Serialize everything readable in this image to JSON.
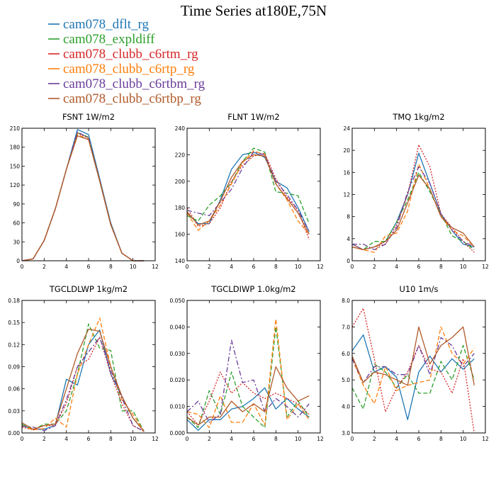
{
  "page_title": "Time Series at180E,75N",
  "colors": {
    "cam078_dflt_rg": "#1f77b4",
    "cam078_expldiff": "#2ca02c",
    "cam078_clubb_c6rtm_rg": "#d62728",
    "cam078_clubb_c6rtp_rg": "#ff7f0e",
    "cam078_clubb_c6rtbm_rg": "#6a3d9a",
    "cam078_clubb_c6rtbp_rg": "#b05a2a"
  },
  "legend": [
    {
      "label": "cam078_dflt_rg",
      "color": "#1f77b4",
      "dash": "solid"
    },
    {
      "label": "cam078_expldiff",
      "color": "#2ca02c",
      "dash": "solid"
    },
    {
      "label": "cam078_clubb_c6rtm_rg",
      "color": "#d62728",
      "dash": "solid"
    },
    {
      "label": "cam078_clubb_c6rtp_rg",
      "color": "#ff7f0e",
      "dash": "solid"
    },
    {
      "label": "cam078_clubb_c6rtbm_rg",
      "color": "#6a3d9a",
      "dash": "solid"
    },
    {
      "label": "cam078_clubb_c6rtbp_rg",
      "color": "#b05a2a",
      "dash": "solid"
    }
  ],
  "chart_data": [
    {
      "type": "line",
      "title": "FSNT   1W/m2",
      "x": [
        0,
        1,
        2,
        3,
        4,
        5,
        6,
        7,
        8,
        9,
        10,
        11
      ],
      "xlim": [
        0,
        12
      ],
      "xticks": [
        0,
        2,
        4,
        6,
        8,
        10,
        12
      ],
      "ylim": [
        0,
        210
      ],
      "yticks": [
        0,
        30,
        60,
        90,
        120,
        150,
        180,
        210
      ],
      "ytick_labels": [
        "0",
        "30",
        "60",
        "90",
        "120",
        "150",
        "180",
        "210"
      ],
      "series": [
        {
          "name": "cam078_dflt_rg",
          "color": "#1f77b4",
          "dash": "solid",
          "values": [
            0,
            3,
            32,
            82,
            145,
            208,
            200,
            130,
            60,
            12,
            0,
            0
          ]
        },
        {
          "name": "cam078_expldiff",
          "color": "#2ca02c",
          "dash": "dash",
          "values": [
            0,
            3,
            32,
            82,
            145,
            203,
            196,
            128,
            58,
            12,
            0,
            0
          ]
        },
        {
          "name": "cam078_clubb_c6rtm_rg",
          "color": "#d62728",
          "dash": "dot",
          "values": [
            0,
            3,
            32,
            82,
            145,
            202,
            194,
            127,
            58,
            12,
            0,
            0
          ]
        },
        {
          "name": "cam078_clubb_c6rtp_rg",
          "color": "#ff7f0e",
          "dash": "dash",
          "values": [
            0,
            3,
            32,
            82,
            145,
            200,
            192,
            127,
            57,
            12,
            0,
            0
          ]
        },
        {
          "name": "cam078_clubb_c6rtbm_rg",
          "color": "#6a3d9a",
          "dash": "dashdot",
          "values": [
            0,
            3,
            32,
            82,
            145,
            204,
            195,
            128,
            58,
            12,
            0,
            0
          ]
        },
        {
          "name": "cam078_clubb_c6rtbp_rg",
          "color": "#b05a2a",
          "dash": "solid",
          "values": [
            0,
            3,
            32,
            82,
            145,
            198,
            192,
            126,
            57,
            12,
            0,
            0
          ]
        }
      ]
    },
    {
      "type": "line",
      "title": "FLNT   1W/m2",
      "x": [
        0,
        1,
        2,
        3,
        4,
        5,
        6,
        7,
        8,
        9,
        10,
        11
      ],
      "xlim": [
        0,
        12
      ],
      "xticks": [
        0,
        2,
        4,
        6,
        8,
        10,
        12
      ],
      "ylim": [
        140,
        240
      ],
      "yticks": [
        140,
        160,
        180,
        200,
        220,
        240
      ],
      "ytick_labels": [
        "140",
        "160",
        "180",
        "200",
        "220",
        "240"
      ],
      "series": [
        {
          "name": "cam078_dflt_rg",
          "color": "#1f77b4",
          "dash": "solid",
          "values": [
            176,
            168,
            168,
            186,
            209,
            220,
            222,
            218,
            200,
            195,
            180,
            162
          ]
        },
        {
          "name": "cam078_expldiff",
          "color": "#2ca02c",
          "dash": "dash",
          "values": [
            174,
            170,
            182,
            189,
            199,
            215,
            225,
            222,
            192,
            191,
            189,
            168
          ]
        },
        {
          "name": "cam078_clubb_c6rtm_rg",
          "color": "#d62728",
          "dash": "dot",
          "values": [
            180,
            166,
            168,
            180,
            200,
            212,
            219,
            221,
            202,
            188,
            178,
            156
          ]
        },
        {
          "name": "cam078_clubb_c6rtp_rg",
          "color": "#ff7f0e",
          "dash": "dash",
          "values": [
            176,
            163,
            170,
            182,
            198,
            214,
            223,
            220,
            198,
            186,
            170,
            160
          ]
        },
        {
          "name": "cam078_clubb_c6rtbm_rg",
          "color": "#6a3d9a",
          "dash": "dashdot",
          "values": [
            178,
            176,
            174,
            184,
            194,
            210,
            222,
            220,
            200,
            190,
            178,
            162
          ]
        },
        {
          "name": "cam078_clubb_c6rtbp_rg",
          "color": "#b05a2a",
          "dash": "solid",
          "values": [
            177,
            167,
            170,
            185,
            203,
            215,
            220,
            219,
            198,
            187,
            176,
            160
          ]
        }
      ]
    },
    {
      "type": "line",
      "title": "TMQ   1kg/m2",
      "x": [
        0,
        1,
        2,
        3,
        4,
        5,
        6,
        7,
        8,
        9,
        10,
        11
      ],
      "xlim": [
        0,
        12
      ],
      "xticks": [
        0,
        2,
        4,
        6,
        8,
        10,
        12
      ],
      "ylim": [
        0,
        24
      ],
      "yticks": [
        0,
        4,
        8,
        12,
        16,
        20,
        24
      ],
      "ytick_labels": [
        "0",
        "4",
        "8",
        "12",
        "16",
        "20",
        "24"
      ],
      "series": [
        {
          "name": "cam078_dflt_rg",
          "color": "#1f77b4",
          "dash": "solid",
          "values": [
            3.0,
            2.0,
            2.5,
            3.5,
            7.0,
            12.0,
            19.5,
            14.0,
            8.5,
            5.5,
            3.0,
            2.5
          ]
        },
        {
          "name": "cam078_expldiff",
          "color": "#2ca02c",
          "dash": "dash",
          "values": [
            2.5,
            2.0,
            3.5,
            3.5,
            7.0,
            11.0,
            16.0,
            12.5,
            8.5,
            4.5,
            3.5,
            2.0
          ]
        },
        {
          "name": "cam078_clubb_c6rtm_rg",
          "color": "#d62728",
          "dash": "dot",
          "values": [
            3.0,
            2.0,
            2.5,
            3.0,
            6.5,
            12.0,
            21.0,
            17.0,
            8.5,
            6.0,
            3.5,
            1.5
          ]
        },
        {
          "name": "cam078_clubb_c6rtp_rg",
          "color": "#ff7f0e",
          "dash": "dash",
          "values": [
            2.5,
            2.0,
            1.5,
            4.5,
            5.0,
            9.0,
            17.5,
            13.0,
            8.0,
            5.5,
            4.5,
            2.5
          ]
        },
        {
          "name": "cam078_clubb_c6rtbm_rg",
          "color": "#6a3d9a",
          "dash": "dashdot",
          "values": [
            3.0,
            3.0,
            2.0,
            3.0,
            6.0,
            12.5,
            17.0,
            14.0,
            8.5,
            5.5,
            3.5,
            2.5
          ]
        },
        {
          "name": "cam078_clubb_c6rtbp_rg",
          "color": "#b05a2a",
          "dash": "solid",
          "values": [
            2.5,
            2.0,
            2.5,
            3.5,
            5.5,
            10.5,
            15.5,
            13.0,
            8.0,
            6.0,
            5.0,
            2.5
          ]
        }
      ]
    },
    {
      "type": "line",
      "title": "TGCLDLWP   1kg/m2",
      "x": [
        0,
        1,
        2,
        3,
        4,
        5,
        6,
        7,
        8,
        9,
        10,
        11
      ],
      "xlim": [
        0,
        12
      ],
      "xticks": [
        0,
        2,
        4,
        6,
        8,
        10,
        12
      ],
      "ylim": [
        0,
        0.18
      ],
      "yticks": [
        0,
        0.03,
        0.06,
        0.09,
        0.12,
        0.15,
        0.18
      ],
      "ytick_labels": [
        "0.00",
        "0.03",
        "0.06",
        "0.09",
        "0.12",
        "0.15",
        "0.18"
      ],
      "series": [
        {
          "name": "cam078_dflt_rg",
          "color": "#1f77b4",
          "dash": "solid",
          "values": [
            0.01,
            0.005,
            0.005,
            0.01,
            0.073,
            0.065,
            0.12,
            0.14,
            0.08,
            0.05,
            0.02,
            0.002
          ]
        },
        {
          "name": "cam078_expldiff",
          "color": "#2ca02c",
          "dash": "dash",
          "values": [
            0.012,
            0.004,
            0.012,
            0.012,
            0.03,
            0.08,
            0.148,
            0.115,
            0.112,
            0.03,
            0.03,
            0.002
          ]
        },
        {
          "name": "cam078_clubb_c6rtm_rg",
          "color": "#d62728",
          "dash": "dot",
          "values": [
            0.008,
            0.004,
            0.01,
            0.01,
            0.04,
            0.09,
            0.1,
            0.13,
            0.08,
            0.04,
            0.01,
            0.002
          ]
        },
        {
          "name": "cam078_clubb_c6rtp_rg",
          "color": "#ff7f0e",
          "dash": "dash",
          "values": [
            0.01,
            0.004,
            0.006,
            0.02,
            0.008,
            0.08,
            0.12,
            0.156,
            0.09,
            0.045,
            0.025,
            0.002
          ]
        },
        {
          "name": "cam078_clubb_c6rtbm_rg",
          "color": "#6a3d9a",
          "dash": "dashdot",
          "values": [
            0.009,
            0.008,
            0.003,
            0.01,
            0.045,
            0.09,
            0.11,
            0.13,
            0.085,
            0.048,
            0.01,
            0.002
          ]
        },
        {
          "name": "cam078_clubb_c6rtbp_rg",
          "color": "#b05a2a",
          "dash": "solid",
          "values": [
            0.014,
            0.005,
            0.01,
            0.012,
            0.06,
            0.108,
            0.141,
            0.138,
            0.09,
            0.05,
            0.02,
            0.002
          ]
        }
      ]
    },
    {
      "type": "line",
      "title": "TGCLDIWP   1.0kg/m2",
      "x": [
        0,
        1,
        2,
        3,
        4,
        5,
        6,
        7,
        8,
        9,
        10,
        11
      ],
      "xlim": [
        0,
        12
      ],
      "xticks": [
        0,
        2,
        4,
        6,
        8,
        10,
        12
      ],
      "ylim": [
        0,
        0.05
      ],
      "yticks": [
        0,
        0.01,
        0.02,
        0.03,
        0.04,
        0.05
      ],
      "ytick_labels": [
        "0.000",
        "0.010",
        "0.020",
        "0.030",
        "0.040",
        "0.050"
      ],
      "series": [
        {
          "name": "cam078_dflt_rg",
          "color": "#1f77b4",
          "dash": "solid",
          "values": [
            0.005,
            0.001,
            0.005,
            0.005,
            0.009,
            0.01,
            0.013,
            0.017,
            0.009,
            0.013,
            0.009,
            0.006
          ]
        },
        {
          "name": "cam078_expldiff",
          "color": "#2ca02c",
          "dash": "dash",
          "values": [
            0.006,
            0.002,
            0.016,
            0.007,
            0.023,
            0.01,
            0.006,
            0.002,
            0.04,
            0.006,
            0.012,
            0.006
          ]
        },
        {
          "name": "cam078_clubb_c6rtm_rg",
          "color": "#d62728",
          "dash": "dot",
          "values": [
            0.008,
            0.003,
            0.012,
            0.023,
            0.015,
            0.019,
            0.015,
            0.013,
            0.015,
            0.013,
            0.011,
            0.007
          ]
        },
        {
          "name": "cam078_clubb_c6rtp_rg",
          "color": "#ff7f0e",
          "dash": "dash",
          "values": [
            0.008,
            0.007,
            0.002,
            0.014,
            0.004,
            0.004,
            0.011,
            0.003,
            0.043,
            0.005,
            0.011,
            0.005
          ]
        },
        {
          "name": "cam078_clubb_c6rtbm_rg",
          "color": "#6a3d9a",
          "dash": "dashdot",
          "values": [
            0.008,
            0.012,
            0.004,
            0.007,
            0.035,
            0.019,
            0.02,
            0.008,
            0.013,
            0.01,
            0.006,
            0.011
          ]
        },
        {
          "name": "cam078_clubb_c6rtbp_rg",
          "color": "#b05a2a",
          "dash": "solid",
          "values": [
            0.006,
            0.003,
            0.006,
            0.006,
            0.012,
            0.008,
            0.011,
            0.008,
            0.025,
            0.017,
            0.012,
            0.014
          ]
        }
      ]
    },
    {
      "type": "line",
      "title": "U10   1m/s",
      "x": [
        0,
        1,
        2,
        3,
        4,
        5,
        6,
        7,
        8,
        9,
        10,
        11
      ],
      "xlim": [
        0,
        12
      ],
      "xticks": [
        0,
        2,
        4,
        6,
        8,
        10,
        12
      ],
      "ylim": [
        3.0,
        8.0
      ],
      "yticks": [
        3.0,
        4.0,
        5.0,
        6.0,
        7.0,
        8.0
      ],
      "ytick_labels": [
        "3.0",
        "4.0",
        "5.0",
        "6.0",
        "7.0",
        "8.0"
      ],
      "series": [
        {
          "name": "cam078_dflt_rg",
          "color": "#1f77b4",
          "dash": "solid",
          "values": [
            6.1,
            6.7,
            5.3,
            5.5,
            5.1,
            3.5,
            5.3,
            5.9,
            5.3,
            5.8,
            5.4,
            5.8
          ]
        },
        {
          "name": "cam078_expldiff",
          "color": "#2ca02c",
          "dash": "dash",
          "values": [
            4.7,
            3.9,
            5.6,
            5.3,
            4.7,
            5.2,
            4.5,
            4.5,
            5.7,
            5.0,
            6.3,
            5.0
          ]
        },
        {
          "name": "cam078_clubb_c6rtm_rg",
          "color": "#d62728",
          "dash": "dot",
          "values": [
            7.0,
            7.7,
            5.8,
            3.8,
            4.7,
            5.3,
            6.3,
            5.4,
            5.3,
            4.5,
            5.8,
            3.0
          ]
        },
        {
          "name": "cam078_clubb_c6rtp_rg",
          "color": "#ff7f0e",
          "dash": "dash",
          "values": [
            5.8,
            4.8,
            4.1,
            5.5,
            4.6,
            4.8,
            4.9,
            5.0,
            7.0,
            6.0,
            5.6,
            6.2
          ]
        },
        {
          "name": "cam078_clubb_c6rtbm_rg",
          "color": "#6a3d9a",
          "dash": "dashdot",
          "values": [
            5.8,
            4.9,
            5.5,
            5.5,
            5.2,
            5.2,
            6.3,
            5.2,
            6.6,
            6.3,
            5.5,
            6.0
          ]
        },
        {
          "name": "cam078_clubb_c6rtbp_rg",
          "color": "#b05a2a",
          "dash": "solid",
          "values": [
            5.9,
            4.9,
            5.3,
            5.2,
            5.0,
            4.8,
            7.0,
            5.6,
            6.3,
            6.6,
            7.0,
            4.8
          ]
        }
      ]
    }
  ]
}
